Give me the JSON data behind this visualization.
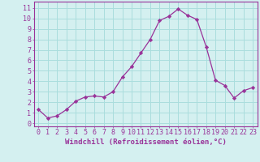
{
  "x": [
    0,
    1,
    2,
    3,
    4,
    5,
    6,
    7,
    8,
    9,
    10,
    11,
    12,
    13,
    14,
    15,
    16,
    17,
    18,
    19,
    20,
    21,
    22,
    23
  ],
  "y": [
    1.3,
    0.5,
    0.7,
    1.3,
    2.1,
    2.5,
    2.6,
    2.5,
    3.0,
    4.4,
    5.4,
    6.7,
    8.0,
    9.8,
    10.2,
    10.9,
    10.3,
    9.9,
    7.3,
    4.1,
    3.6,
    2.4,
    3.1,
    3.4
  ],
  "line_color": "#993399",
  "marker": "D",
  "marker_size": 2.2,
  "bg_color": "#d4f0f0",
  "grid_color": "#aadddd",
  "xlabel": "Windchill (Refroidissement éolien,°C)",
  "xlabel_color": "#993399",
  "xlabel_fontsize": 6.5,
  "ylabel_ticks": [
    0,
    1,
    2,
    3,
    4,
    5,
    6,
    7,
    8,
    9,
    10,
    11
  ],
  "xlim": [
    -0.5,
    23.5
  ],
  "ylim": [
    -0.3,
    11.6
  ],
  "tick_color": "#993399",
  "tick_fontsize": 6,
  "spine_color": "#993399",
  "axis_bg": "#d4f0f0",
  "linewidth": 0.9
}
